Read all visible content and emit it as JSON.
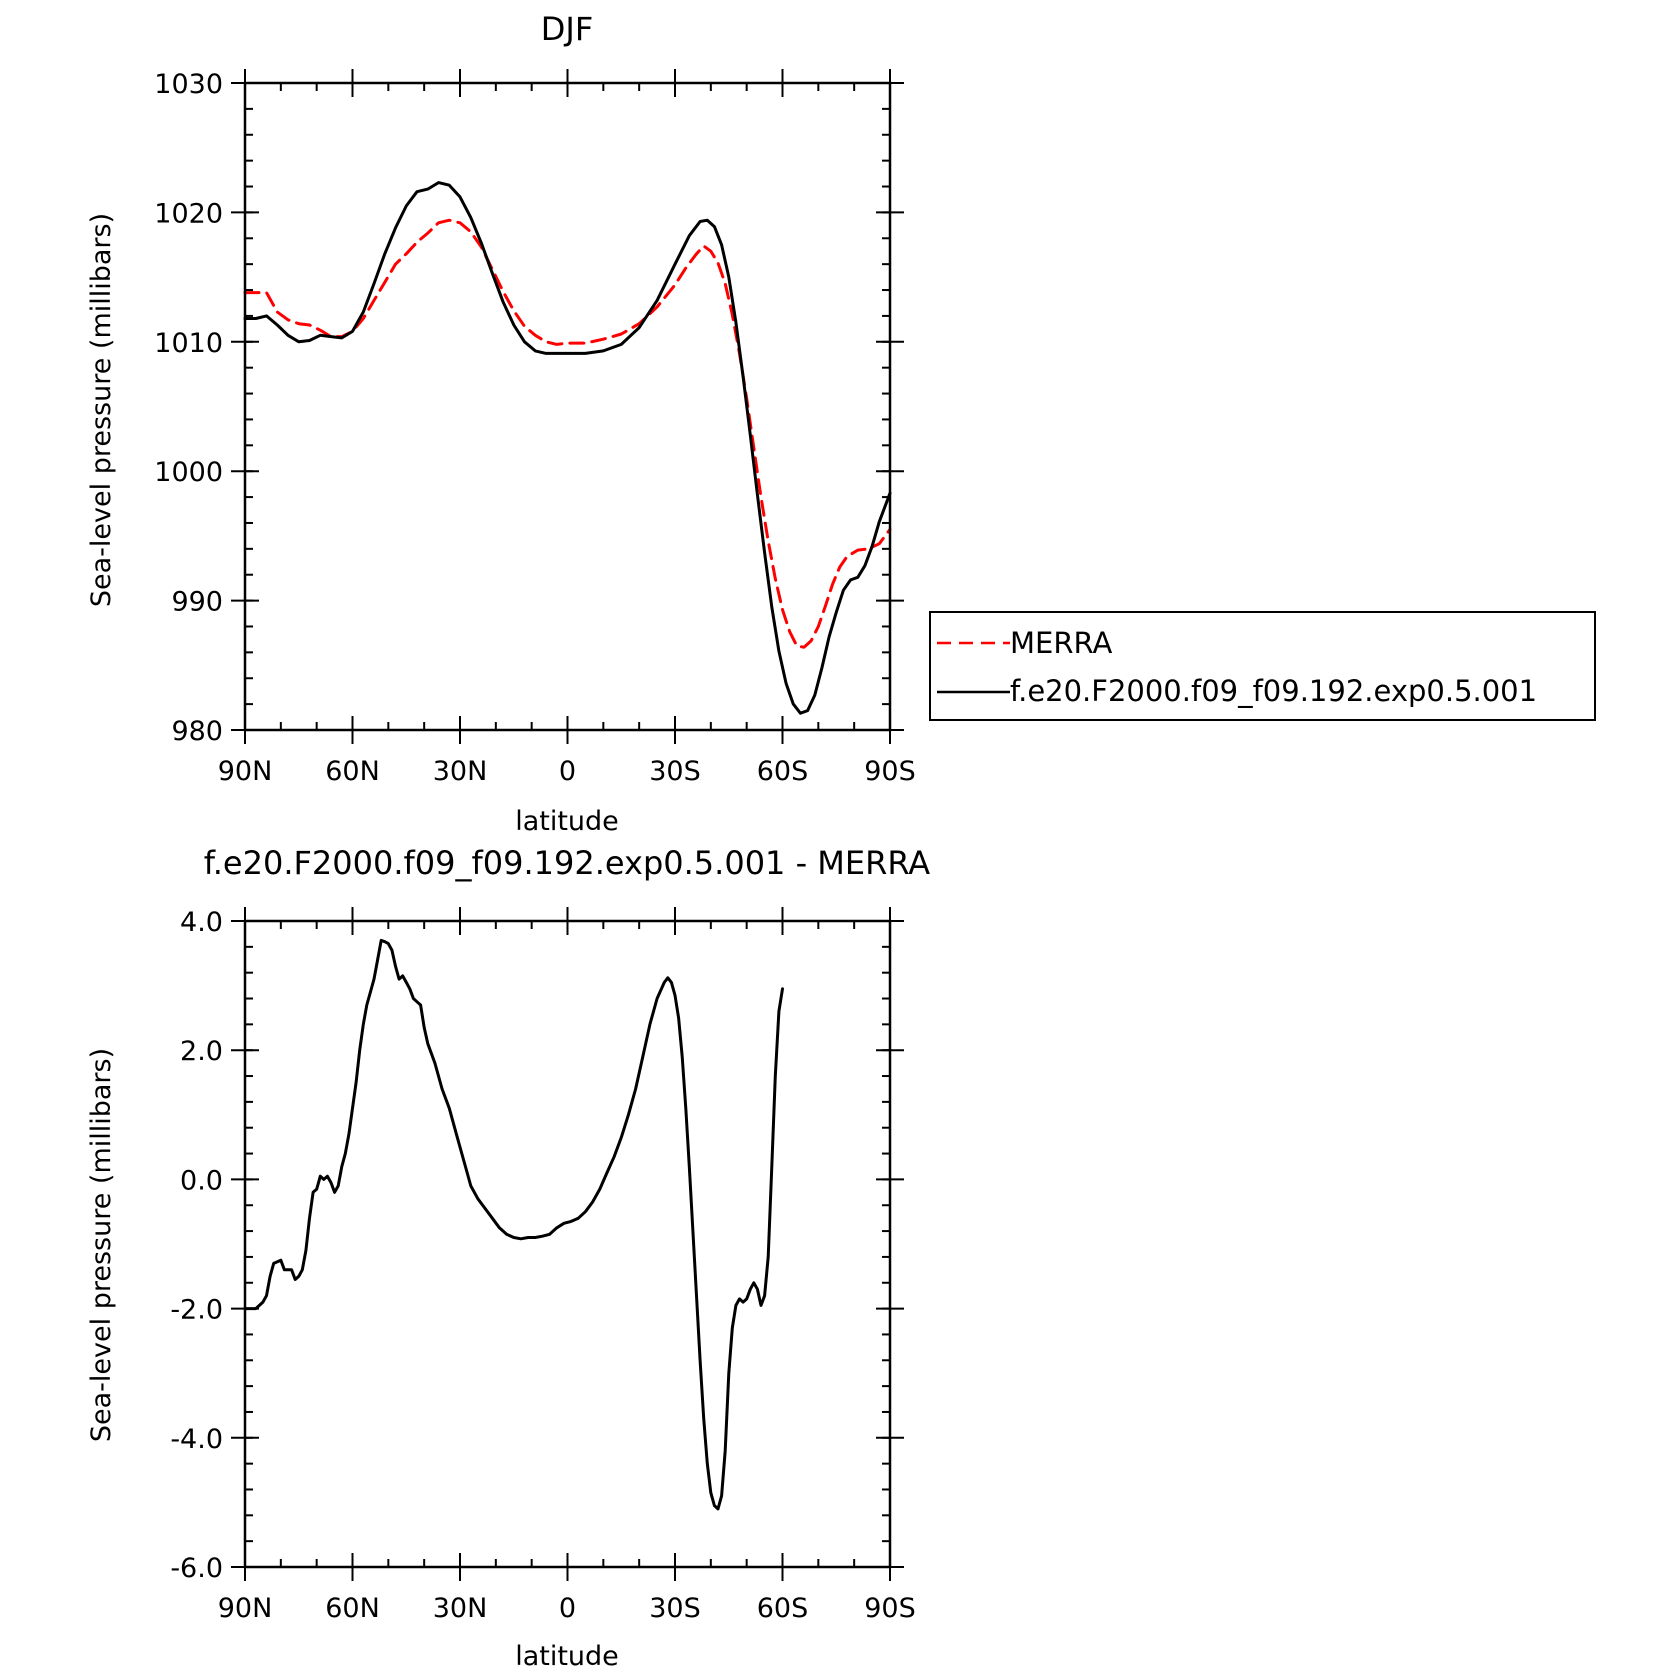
{
  "chart_data": [
    {
      "type": "line",
      "title": "DJF",
      "xlabel": "latitude",
      "ylabel": "Sea-level pressure (millibars)",
      "xlim": [
        90,
        -90
      ],
      "ylim": [
        980,
        1030
      ],
      "x_ticks": [
        90,
        60,
        30,
        0,
        -30,
        -60,
        -90
      ],
      "x_tick_labels": [
        "90N",
        "60N",
        "30N",
        "0",
        "30S",
        "60S",
        "90S"
      ],
      "y_ticks": [
        980,
        990,
        1000,
        1010,
        1020,
        1030
      ],
      "y_tick_labels": [
        "980",
        "990",
        "1000",
        "1010",
        "1020",
        "1030"
      ],
      "legend": {
        "placement": "right"
      },
      "series": [
        {
          "name": "MERRA",
          "color": "#ff0000",
          "dash": "dashed",
          "points": [
            [
              90,
              1013.8
            ],
            [
              84,
              1013.8
            ],
            [
              81,
              1012.3
            ],
            [
              78,
              1011.7
            ],
            [
              75,
              1011.4
            ],
            [
              72,
              1011.3
            ],
            [
              69,
              1010.9
            ],
            [
              66,
              1010.4
            ],
            [
              63,
              1010.4
            ],
            [
              60,
              1010.8
            ],
            [
              57,
              1011.8
            ],
            [
              54,
              1013.2
            ],
            [
              51,
              1014.6
            ],
            [
              48,
              1016.0
            ],
            [
              45,
              1016.8
            ],
            [
              42,
              1017.7
            ],
            [
              39,
              1018.4
            ],
            [
              36,
              1019.2
            ],
            [
              33,
              1019.4
            ],
            [
              30,
              1019.2
            ],
            [
              27,
              1018.5
            ],
            [
              24,
              1017.3
            ],
            [
              21,
              1015.6
            ],
            [
              18,
              1013.9
            ],
            [
              15,
              1012.4
            ],
            [
              12,
              1011.2
            ],
            [
              9,
              1010.5
            ],
            [
              6,
              1010.0
            ],
            [
              3,
              1009.8
            ],
            [
              0,
              1009.9
            ],
            [
              -5,
              1009.9
            ],
            [
              -10,
              1010.2
            ],
            [
              -15,
              1010.6
            ],
            [
              -20,
              1011.4
            ],
            [
              -25,
              1012.7
            ],
            [
              -30,
              1014.4
            ],
            [
              -33,
              1015.7
            ],
            [
              -36,
              1016.8
            ],
            [
              -38,
              1017.4
            ],
            [
              -40,
              1017.0
            ],
            [
              -42,
              1016.1
            ],
            [
              -44,
              1014.5
            ],
            [
              -46,
              1012.1
            ],
            [
              -48,
              1009.1
            ],
            [
              -50,
              1005.6
            ],
            [
              -52,
              1001.8
            ],
            [
              -54,
              998.0
            ],
            [
              -56,
              994.6
            ],
            [
              -58,
              991.7
            ],
            [
              -60,
              989.3
            ],
            [
              -62,
              987.6
            ],
            [
              -64,
              986.5
            ],
            [
              -66,
              986.4
            ],
            [
              -68,
              986.9
            ],
            [
              -70,
              988.0
            ],
            [
              -72,
              989.6
            ],
            [
              -74,
              991.3
            ],
            [
              -76,
              992.6
            ],
            [
              -78,
              993.4
            ],
            [
              -81,
              993.9
            ],
            [
              -84,
              994.0
            ],
            [
              -87,
              994.4
            ],
            [
              -90,
              995.5
            ]
          ]
        },
        {
          "name": "f.e20.F2000.f09_f09.192.exp0.5.001",
          "color": "#000000",
          "dash": "solid",
          "points": [
            [
              90,
              1011.8
            ],
            [
              87,
              1011.8
            ],
            [
              84,
              1012.0
            ],
            [
              81,
              1011.3
            ],
            [
              78,
              1010.5
            ],
            [
              75,
              1010.0
            ],
            [
              72,
              1010.1
            ],
            [
              69,
              1010.5
            ],
            [
              66,
              1010.4
            ],
            [
              63,
              1010.3
            ],
            [
              60,
              1010.8
            ],
            [
              57,
              1012.3
            ],
            [
              54,
              1014.5
            ],
            [
              51,
              1016.8
            ],
            [
              48,
              1018.8
            ],
            [
              45,
              1020.5
            ],
            [
              42,
              1021.6
            ],
            [
              39,
              1021.8
            ],
            [
              36,
              1022.3
            ],
            [
              33,
              1022.1
            ],
            [
              30,
              1021.2
            ],
            [
              27,
              1019.6
            ],
            [
              24,
              1017.6
            ],
            [
              21,
              1015.3
            ],
            [
              18,
              1013.1
            ],
            [
              15,
              1011.3
            ],
            [
              12,
              1010.0
            ],
            [
              9,
              1009.3
            ],
            [
              6,
              1009.1
            ],
            [
              3,
              1009.1
            ],
            [
              0,
              1009.1
            ],
            [
              -5,
              1009.1
            ],
            [
              -10,
              1009.3
            ],
            [
              -15,
              1009.8
            ],
            [
              -20,
              1011.1
            ],
            [
              -25,
              1013.2
            ],
            [
              -30,
              1016.0
            ],
            [
              -34,
              1018.2
            ],
            [
              -37,
              1019.3
            ],
            [
              -39,
              1019.4
            ],
            [
              -41,
              1018.9
            ],
            [
              -43,
              1017.5
            ],
            [
              -45,
              1015.0
            ],
            [
              -47,
              1011.5
            ],
            [
              -49,
              1007.3
            ],
            [
              -51,
              1002.8
            ],
            [
              -53,
              998.2
            ],
            [
              -55,
              993.7
            ],
            [
              -57,
              989.5
            ],
            [
              -59,
              986.1
            ],
            [
              -61,
              983.6
            ],
            [
              -63,
              982.0
            ],
            [
              -65,
              981.3
            ],
            [
              -67,
              981.5
            ],
            [
              -69,
              982.7
            ],
            [
              -71,
              984.8
            ],
            [
              -73,
              987.2
            ],
            [
              -75,
              989.1
            ],
            [
              -77,
              990.8
            ],
            [
              -79,
              991.6
            ],
            [
              -81,
              991.8
            ],
            [
              -83,
              992.7
            ],
            [
              -85,
              994.2
            ],
            [
              -87,
              996.1
            ],
            [
              -90,
              998.3
            ]
          ]
        }
      ]
    },
    {
      "type": "line",
      "title": "f.e20.F2000.f09_f09.192.exp0.5.001 - MERRA",
      "xlabel": "latitude",
      "ylabel": "Sea-level pressure (millibars)",
      "xlim": [
        90,
        -90
      ],
      "ylim": [
        -6,
        4
      ],
      "x_ticks": [
        90,
        60,
        30,
        0,
        -30,
        -60,
        -90
      ],
      "x_tick_labels": [
        "90N",
        "60N",
        "30N",
        "0",
        "30S",
        "60S",
        "90S"
      ],
      "y_ticks": [
        -6,
        -4,
        -2,
        0,
        2,
        4
      ],
      "y_tick_labels": [
        "-6.0",
        "-4.0",
        "-2.0",
        "0.0",
        "2.0",
        "4.0"
      ],
      "series": [
        {
          "color": "#000000",
          "dash": "solid",
          "points": [
            [
              90,
              -2.0
            ],
            [
              87,
              -2.0
            ],
            [
              85,
              -1.9
            ],
            [
              84,
              -1.8
            ],
            [
              83,
              -1.5
            ],
            [
              82,
              -1.3
            ],
            [
              80,
              -1.25
            ],
            [
              79,
              -1.4
            ],
            [
              77,
              -1.4
            ],
            [
              76,
              -1.55
            ],
            [
              75,
              -1.5
            ],
            [
              74,
              -1.4
            ],
            [
              73,
              -1.1
            ],
            [
              72,
              -0.6
            ],
            [
              71,
              -0.2
            ],
            [
              70,
              -0.15
            ],
            [
              69,
              0.05
            ],
            [
              68,
              0.0
            ],
            [
              67,
              0.05
            ],
            [
              66,
              -0.05
            ],
            [
              65,
              -0.2
            ],
            [
              64,
              -0.1
            ],
            [
              63,
              0.2
            ],
            [
              62,
              0.4
            ],
            [
              61,
              0.7
            ],
            [
              60,
              1.1
            ],
            [
              59,
              1.5
            ],
            [
              58,
              2.0
            ],
            [
              57,
              2.4
            ],
            [
              56,
              2.7
            ],
            [
              55,
              2.9
            ],
            [
              54,
              3.1
            ],
            [
              53,
              3.4
            ],
            [
              52,
              3.7
            ],
            [
              51,
              3.68
            ],
            [
              50,
              3.65
            ],
            [
              49,
              3.55
            ],
            [
              48,
              3.3
            ],
            [
              47,
              3.1
            ],
            [
              46,
              3.15
            ],
            [
              45,
              3.05
            ],
            [
              44,
              2.95
            ],
            [
              43,
              2.8
            ],
            [
              42,
              2.75
            ],
            [
              41,
              2.7
            ],
            [
              40,
              2.35
            ],
            [
              39,
              2.1
            ],
            [
              37,
              1.8
            ],
            [
              35,
              1.4
            ],
            [
              33,
              1.1
            ],
            [
              31,
              0.7
            ],
            [
              29,
              0.3
            ],
            [
              28,
              0.1
            ],
            [
              27,
              -0.1
            ],
            [
              25,
              -0.3
            ],
            [
              23,
              -0.45
            ],
            [
              21,
              -0.6
            ],
            [
              19,
              -0.75
            ],
            [
              17,
              -0.85
            ],
            [
              15,
              -0.9
            ],
            [
              13,
              -0.92
            ],
            [
              11,
              -0.9
            ],
            [
              9,
              -0.9
            ],
            [
              7,
              -0.88
            ],
            [
              5,
              -0.85
            ],
            [
              3,
              -0.75
            ],
            [
              1,
              -0.68
            ],
            [
              -1,
              -0.65
            ],
            [
              -3,
              -0.6
            ],
            [
              -5,
              -0.5
            ],
            [
              -7,
              -0.35
            ],
            [
              -9,
              -0.15
            ],
            [
              -11,
              0.1
            ],
            [
              -13,
              0.35
            ],
            [
              -15,
              0.65
            ],
            [
              -17,
              1.0
            ],
            [
              -19,
              1.4
            ],
            [
              -21,
              1.9
            ],
            [
              -23,
              2.4
            ],
            [
              -25,
              2.8
            ],
            [
              -27,
              3.05
            ],
            [
              -28,
              3.12
            ],
            [
              -29,
              3.05
            ],
            [
              -30,
              2.85
            ],
            [
              -31,
              2.5
            ],
            [
              -32,
              1.9
            ],
            [
              -33,
              1.1
            ],
            [
              -34,
              0.2
            ],
            [
              -35,
              -0.8
            ],
            [
              -36,
              -1.8
            ],
            [
              -37,
              -2.8
            ],
            [
              -38,
              -3.7
            ],
            [
              -39,
              -4.4
            ],
            [
              -40,
              -4.85
            ],
            [
              -41,
              -5.05
            ],
            [
              -42,
              -5.1
            ],
            [
              -43,
              -4.9
            ],
            [
              -44,
              -4.2
            ],
            [
              -45,
              -3.0
            ],
            [
              -46,
              -2.3
            ],
            [
              -47,
              -1.95
            ],
            [
              -48,
              -1.85
            ],
            [
              -49,
              -1.9
            ],
            [
              -50,
              -1.85
            ],
            [
              -51,
              -1.7
            ],
            [
              -52,
              -1.6
            ],
            [
              -53,
              -1.7
            ],
            [
              -54,
              -1.95
            ],
            [
              -55,
              -1.8
            ],
            [
              -56,
              -1.2
            ],
            [
              -57,
              0.2
            ],
            [
              -58,
              1.6
            ],
            [
              -59,
              2.6
            ],
            [
              -60,
              2.95
            ]
          ]
        }
      ]
    }
  ]
}
